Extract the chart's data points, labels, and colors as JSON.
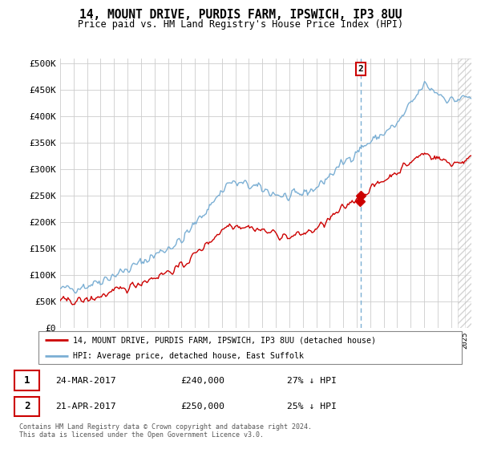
{
  "title": "14, MOUNT DRIVE, PURDIS FARM, IPSWICH, IP3 8UU",
  "subtitle": "Price paid vs. HM Land Registry's House Price Index (HPI)",
  "ylim": [
    0,
    500000
  ],
  "yticks": [
    0,
    50000,
    100000,
    150000,
    200000,
    250000,
    300000,
    350000,
    400000,
    450000,
    500000
  ],
  "ytick_labels": [
    "£0",
    "£50K",
    "£100K",
    "£150K",
    "£200K",
    "£250K",
    "£300K",
    "£350K",
    "£400K",
    "£450K",
    "£500K"
  ],
  "hpi_color": "#7bafd4",
  "price_color": "#cc0000",
  "vline_color": "#7bafd4",
  "vline_border_color": "#cc0000",
  "background_color": "#ffffff",
  "grid_color": "#cccccc",
  "legend_label_red": "14, MOUNT DRIVE, PURDIS FARM, IPSWICH, IP3 8UU (detached house)",
  "legend_label_blue": "HPI: Average price, detached house, East Suffolk",
  "transaction1_date": "24-MAR-2017",
  "transaction1_price": "£240,000",
  "transaction1_hpi": "27% ↓ HPI",
  "transaction2_date": "21-APR-2017",
  "transaction2_price": "£250,000",
  "transaction2_hpi": "25% ↓ HPI",
  "footer": "Contains HM Land Registry data © Crown copyright and database right 2024.\nThis data is licensed under the Open Government Licence v3.0.",
  "sale1_year": 2017.22,
  "sale1_price": 240000,
  "sale2_year": 2017.3,
  "sale2_price": 250000,
  "vline_year": 2017.31,
  "xmin": 1995,
  "xmax": 2025.5,
  "hatch_start": 2024.5
}
